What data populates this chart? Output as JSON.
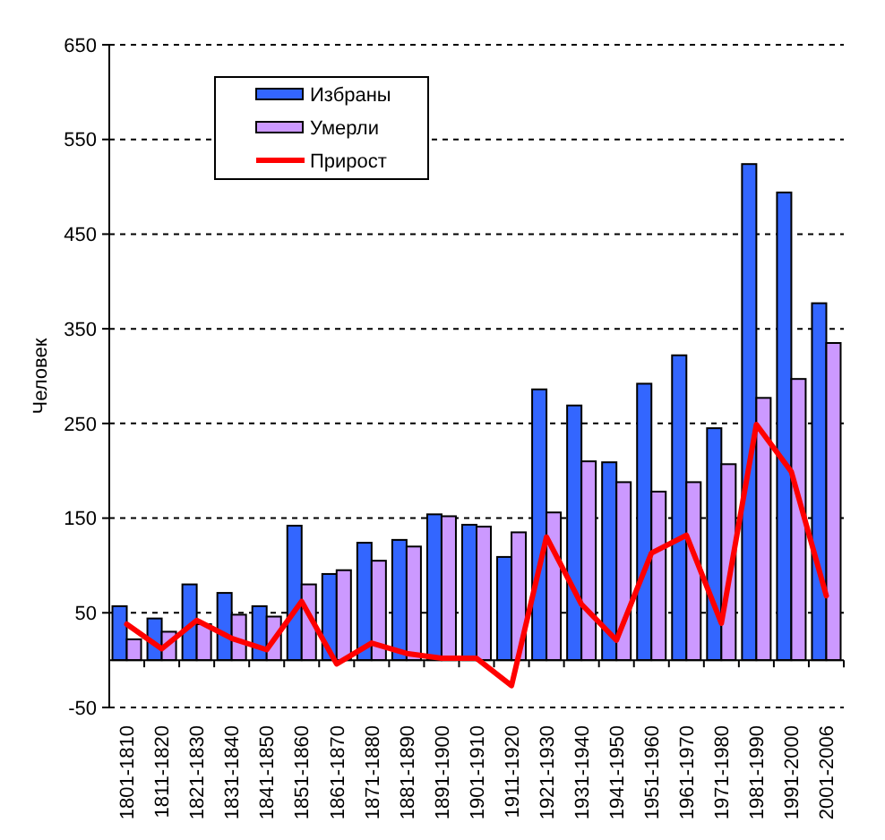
{
  "chart_data": {
    "type": "bar",
    "ylabel": "Человек",
    "categories": [
      "1801-1810",
      "1811-1820",
      "1821-1830",
      "1831-1840",
      "1841-1850",
      "1851-1860",
      "1861-1870",
      "1871-1880",
      "1881-1890",
      "1891-1900",
      "1901-1910",
      "1911-1920",
      "1921-1930",
      "1931-1940",
      "1941-1950",
      "1951-1960",
      "1961-1970",
      "1971-1980",
      "1981-1990",
      "1991-2000",
      "2001-2006"
    ],
    "series": [
      {
        "name": "Избраны",
        "color": "#3366ff",
        "values": [
          57,
          44,
          80,
          71,
          57,
          142,
          91,
          124,
          127,
          154,
          143,
          109,
          286,
          269,
          209,
          292,
          322,
          245,
          524,
          494,
          377
        ]
      },
      {
        "name": "Умерли",
        "color": "#cc99ff",
        "values": [
          22,
          30,
          38,
          48,
          46,
          80,
          95,
          105,
          120,
          152,
          141,
          135,
          156,
          210,
          188,
          178,
          188,
          207,
          277,
          297,
          335
        ]
      },
      {
        "name": "Прирост",
        "type": "line",
        "color": "#ff0000",
        "values": [
          38,
          12,
          42,
          23,
          11,
          62,
          -4,
          18,
          7,
          2,
          2,
          -27,
          130,
          59,
          21,
          113,
          132,
          39,
          249,
          199,
          68
        ]
      }
    ],
    "ylim": [
      -50,
      650
    ],
    "yticks": [
      -50,
      50,
      150,
      250,
      350,
      450,
      550,
      650
    ],
    "grid": "y",
    "legend": "top left"
  }
}
